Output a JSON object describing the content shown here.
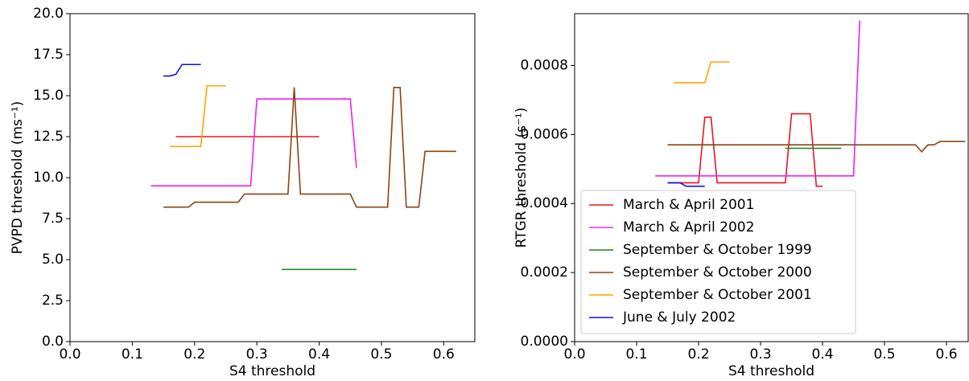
{
  "chart_data": [
    {
      "type": "line",
      "x_label": "S4 threshold",
      "y_label": "PVPD threshold (ms⁻¹)",
      "xlim": [
        0,
        0.65
      ],
      "xticks": [
        {
          "value": 0,
          "label": "0.0"
        },
        0.1,
        0.2,
        0.3,
        0.4,
        0.5,
        0.6
      ],
      "ylim": [
        0,
        20
      ],
      "yticks": [
        {
          "value": 0,
          "label": "0.0"
        },
        2.5,
        {
          "value": 5,
          "label": "5.0"
        },
        7.5,
        {
          "value": 10,
          "label": "10.0"
        },
        12.5,
        {
          "value": 15,
          "label": "15.0"
        },
        17.5,
        {
          "value": 20,
          "label": "20.0"
        }
      ],
      "series": [
        {
          "color": "#e8161b",
          "x": [
            0.17,
            0.4
          ],
          "values": [
            12.5,
            12.5
          ]
        },
        {
          "color": "#f020f0",
          "x": [
            0.13,
            0.29,
            0.3,
            0.45,
            0.46
          ],
          "values": [
            9.5,
            9.5,
            14.8,
            14.8,
            10.6
          ]
        },
        {
          "color": "#16861a",
          "x": [
            0.34,
            0.46
          ],
          "values": [
            4.4,
            4.4
          ]
        },
        {
          "color": "#8b4513",
          "x": [
            0.15,
            0.19,
            0.2,
            0.27,
            0.28,
            0.35,
            0.36,
            0.37,
            0.45,
            0.46,
            0.51,
            0.52,
            0.53,
            0.54,
            0.56,
            0.57,
            0.62
          ],
          "values": [
            8.2,
            8.2,
            8.5,
            8.5,
            9.0,
            9.0,
            15.5,
            9.0,
            9.0,
            8.2,
            8.2,
            15.5,
            15.5,
            8.2,
            8.2,
            11.6,
            11.6
          ]
        },
        {
          "color": "#ffa500",
          "x": [
            0.16,
            0.21,
            0.22,
            0.25
          ],
          "values": [
            11.9,
            11.9,
            15.6,
            15.6
          ]
        },
        {
          "color": "#1010e0",
          "x": [
            0.15,
            0.16,
            0.17,
            0.18,
            0.21
          ],
          "values": [
            16.2,
            16.2,
            16.3,
            16.9,
            16.9
          ]
        }
      ]
    },
    {
      "type": "line",
      "x_label": "S4 threshold",
      "y_label": "RTGR threshold (s⁻¹)",
      "xlim": [
        0,
        0.635
      ],
      "xticks": [
        {
          "value": 0,
          "label": "0.0"
        },
        0.1,
        0.2,
        0.3,
        0.4,
        0.5,
        0.6
      ],
      "ylim": [
        0,
        0.00095
      ],
      "yticks": [
        {
          "value": 0,
          "label": "0.0000"
        },
        {
          "value": 0.0002,
          "label": "0.0002"
        },
        {
          "value": 0.0004,
          "label": "0.0004"
        },
        {
          "value": 0.0006,
          "label": "0.0006"
        },
        {
          "value": 0.0008,
          "label": "0.0008"
        }
      ],
      "legend": "lower left",
      "series": [
        {
          "name": "March & April 2001",
          "color": "#e8161b",
          "x": [
            0.15,
            0.2,
            0.21,
            0.22,
            0.23,
            0.34,
            0.35,
            0.38,
            0.39,
            0.4
          ],
          "values": [
            0.00046,
            0.00046,
            0.00065,
            0.00065,
            0.00046,
            0.00046,
            0.00066,
            0.00066,
            0.00045,
            0.00045
          ]
        },
        {
          "name": "March & April 2002",
          "color": "#f020f0",
          "x": [
            0.13,
            0.45,
            0.46
          ],
          "values": [
            0.00048,
            0.00048,
            0.00093
          ]
        },
        {
          "name": "September & October 1999",
          "color": "#16861a",
          "x": [
            0.34,
            0.43
          ],
          "values": [
            0.00056,
            0.00056
          ]
        },
        {
          "name": "September & October 2000",
          "color": "#8b4513",
          "x": [
            0.15,
            0.55,
            0.56,
            0.57,
            0.58,
            0.59,
            0.63
          ],
          "values": [
            0.00057,
            0.00057,
            0.00055,
            0.00057,
            0.00057,
            0.00058,
            0.00058
          ]
        },
        {
          "name": "September & October 2001",
          "color": "#ffa500",
          "x": [
            0.16,
            0.21,
            0.22,
            0.25
          ],
          "values": [
            0.00075,
            0.00075,
            0.00081,
            0.00081
          ]
        },
        {
          "name": "June & July 2002",
          "color": "#1010e0",
          "x": [
            0.15,
            0.17,
            0.18,
            0.21
          ],
          "values": [
            0.00046,
            0.00046,
            0.00045,
            0.00045
          ]
        }
      ]
    }
  ]
}
